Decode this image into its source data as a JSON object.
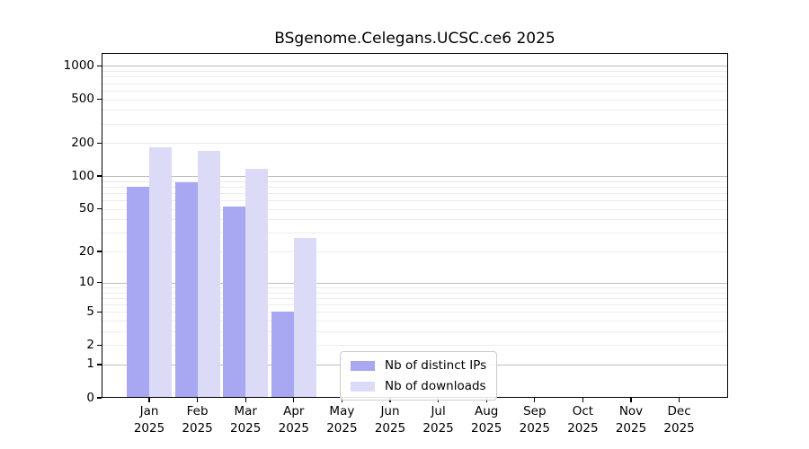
{
  "chart_data": {
    "type": "bar",
    "title": "BSgenome.Celegans.UCSC.ce6 2025",
    "categories": [
      "Jan",
      "Feb",
      "Mar",
      "Apr",
      "May",
      "Jun",
      "Jul",
      "Aug",
      "Sep",
      "Oct",
      "Nov",
      "Dec"
    ],
    "year": "2025",
    "series": [
      {
        "name": "Nb of distinct IPs",
        "color": "#a7a7f2",
        "values": [
          80,
          88,
          53,
          5,
          0,
          0,
          0,
          0,
          0,
          0,
          0,
          0
        ]
      },
      {
        "name": "Nb of downloads",
        "color": "#dbdbf8",
        "values": [
          182,
          170,
          117,
          27,
          0,
          0,
          0,
          0,
          0,
          0,
          0,
          0
        ]
      }
    ],
    "y_scale": "log1p",
    "y_ticks": [
      0,
      1,
      2,
      5,
      10,
      20,
      50,
      100,
      200,
      500,
      1000
    ],
    "ylim": [
      0,
      1310
    ],
    "grid": true,
    "legend_position": "bottom-center",
    "colors": {
      "axis": "#000000",
      "grid_minor": "#ececec",
      "grid_major": "#bcbcbc",
      "legend_border": "#cccccc",
      "background": "#ffffff"
    }
  }
}
